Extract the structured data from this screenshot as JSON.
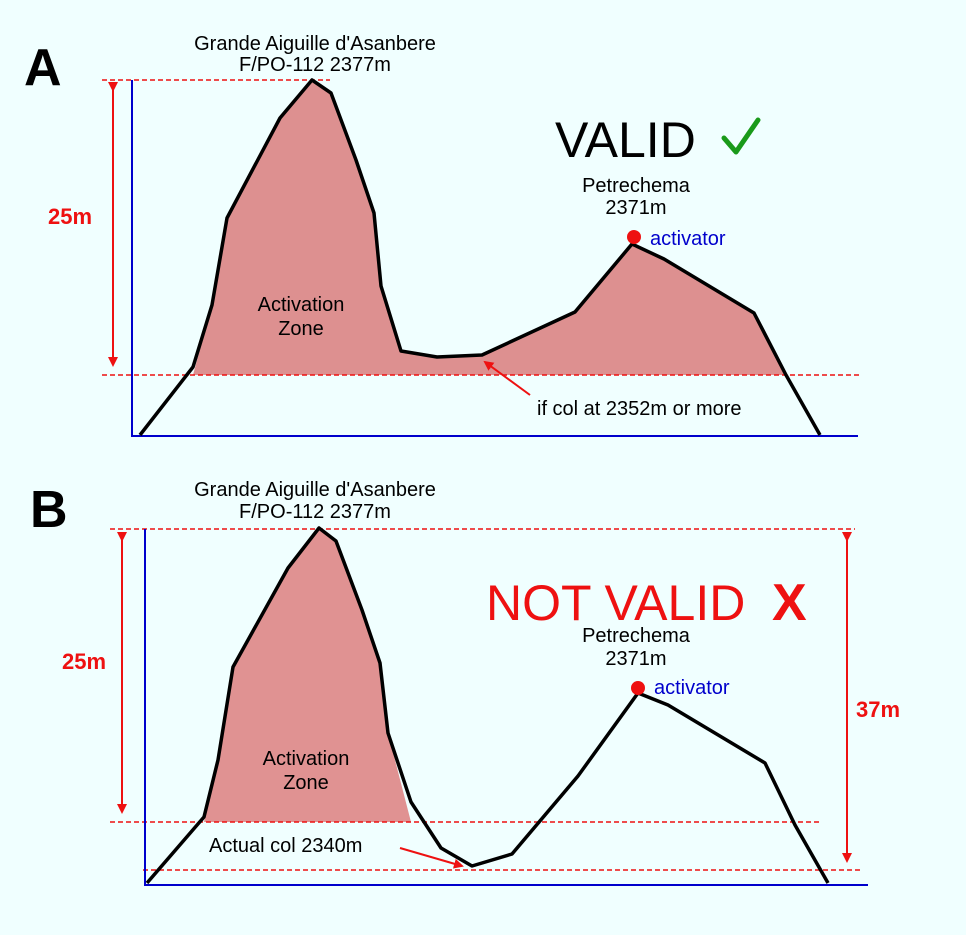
{
  "colors": {
    "background": "#f0ffff",
    "zone_fill": "#dd9090",
    "axis": "#0000cc",
    "dimension": "#ee1111",
    "check": "#1a9a1a",
    "activator_text": "#0000cc"
  },
  "panel_a": {
    "letter": "A",
    "summit_name": "Grande Aiguille d'Asanbere",
    "summit_ref": "F/PO-112 2377m",
    "status": "VALID",
    "status_mark": "✓",
    "subpeak_name": "Petrechema",
    "subpeak_elev": "2371m",
    "activator": "activator",
    "zone_line1": "Activation",
    "zone_line2": "Zone",
    "dimension": "25m",
    "col_note": "if col at 2352m or more"
  },
  "panel_b": {
    "letter": "B",
    "summit_name": "Grande Aiguille d'Asanbere",
    "summit_ref": "F/PO-112 2377m",
    "status": "NOT VALID",
    "status_mark": "X",
    "subpeak_name": "Petrechema",
    "subpeak_elev": "2371m",
    "activator": "activator",
    "zone_line1": "Activation",
    "zone_line2": "Zone",
    "dimension": "25m",
    "dimension_right": "37m",
    "col_note": "Actual col 2340m"
  }
}
